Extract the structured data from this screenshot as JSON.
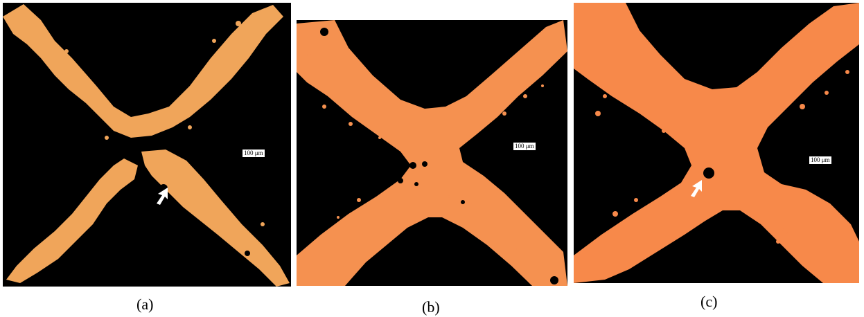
{
  "colors": {
    "background": "#000000",
    "metal_a": "#f0a55a",
    "metal_b": "#f59150",
    "metal_c": "#f7894a",
    "arrow": "#ffffff"
  },
  "panels": [
    {
      "id": "a",
      "caption": "(a)",
      "scale_label": "100 μm",
      "arrow": true,
      "arrow_icon": "arrow-icon"
    },
    {
      "id": "b",
      "caption": "(b)",
      "scale_label": "100 μm",
      "arrow": false
    },
    {
      "id": "c",
      "caption": "(c)",
      "scale_label": "100 μm",
      "arrow": true,
      "arrow_icon": "arrow-icon"
    }
  ]
}
